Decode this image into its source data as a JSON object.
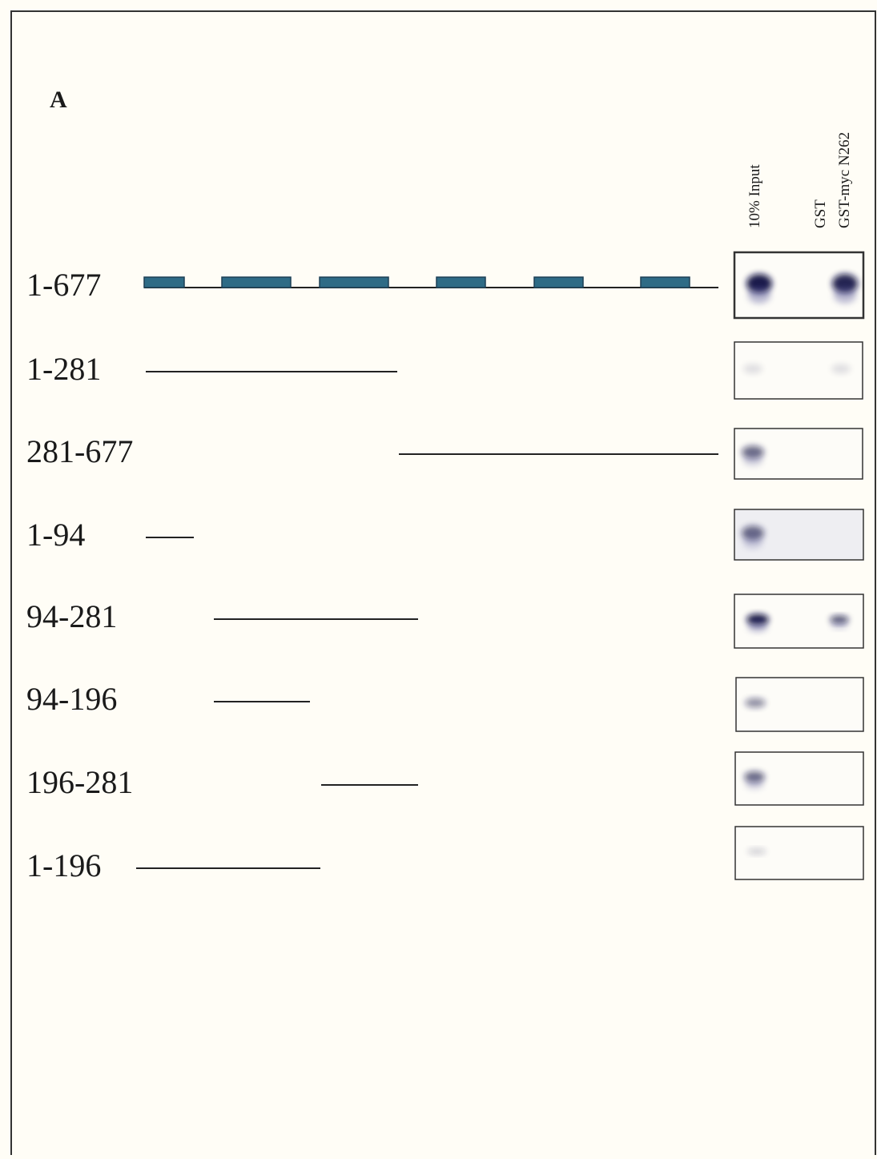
{
  "panel_label": "A",
  "lanes": [
    "10% Input",
    "GST",
    "GST-myc N262"
  ],
  "constructs": [
    {
      "label": "1-677"
    },
    {
      "label": "1-281"
    },
    {
      "label": "281-677"
    },
    {
      "label": "1-94"
    },
    {
      "label": "94-281"
    },
    {
      "label": "94-196"
    },
    {
      "label": "196-281"
    },
    {
      "label": "1-196"
    }
  ]
}
